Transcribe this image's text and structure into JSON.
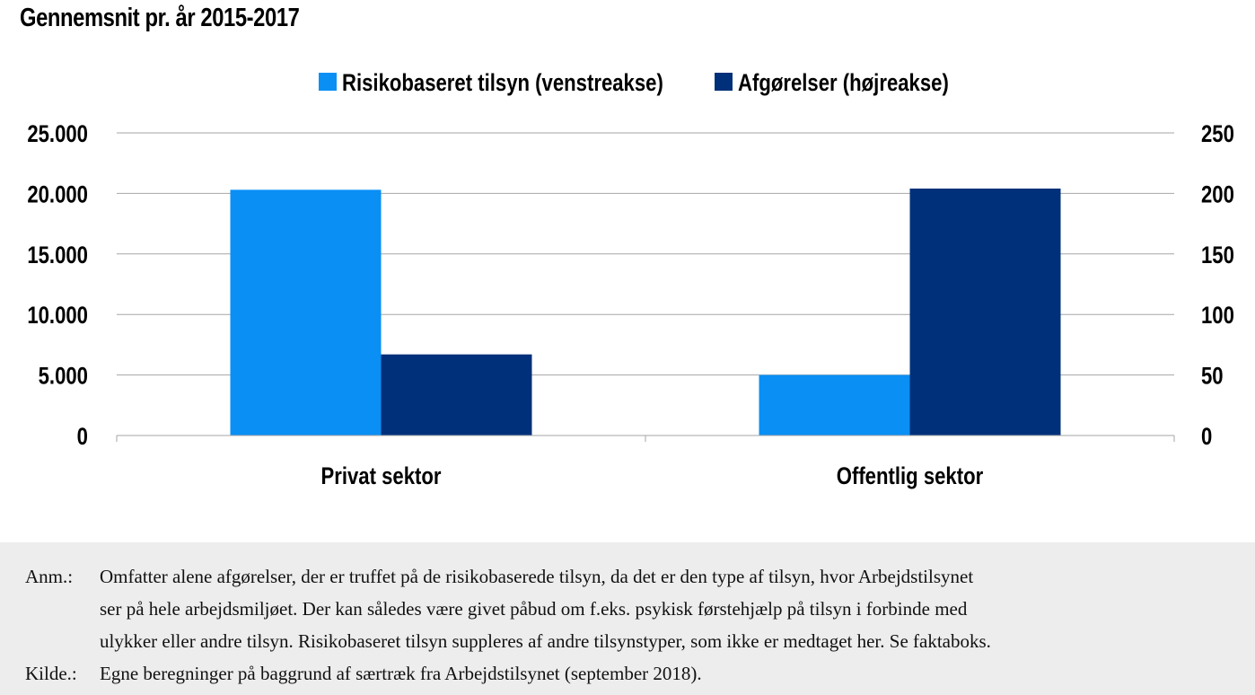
{
  "title": "Gennemsnit pr. år 2015-2017",
  "colors": {
    "series1": "#0a8ff5",
    "series2": "#00307a",
    "grid": "#a6a6a6",
    "note_bg": "#ededed"
  },
  "chart_data": {
    "type": "bar",
    "categories": [
      "Privat sektor",
      "Offentlig sektor"
    ],
    "series": [
      {
        "name": "Risikobaseret tilsyn (venstreakse)",
        "axis": "left",
        "values": [
          20300,
          5000
        ]
      },
      {
        "name": "Afgørelser (højreakse)",
        "axis": "right",
        "values": [
          67,
          204
        ]
      }
    ],
    "left_axis": {
      "ylim": [
        0,
        25000
      ],
      "ticks": [
        0,
        5000,
        10000,
        15000,
        20000,
        25000
      ],
      "tick_labels": [
        "0",
        "5.000",
        "10.000",
        "15.000",
        "20.000",
        "25.000"
      ]
    },
    "right_axis": {
      "ylim": [
        0,
        250
      ],
      "ticks": [
        0,
        50,
        100,
        150,
        200,
        250
      ],
      "tick_labels": [
        "0",
        "50",
        "100",
        "150",
        "200",
        "250"
      ]
    },
    "legend_position": "top-center",
    "grid": true
  },
  "notes": [
    {
      "label": "Anm.:",
      "lines": [
        "Omfatter alene afgørelser, der er truffet på de risikobaserede tilsyn, da det er den type af tilsyn, hvor Arbejdstilsynet",
        "ser på hele arbejdsmiljøet. Der kan således være givet påbud om f.eks. psykisk førstehjælp på tilsyn i forbinde med",
        "ulykker eller andre tilsyn. Risikobaseret tilsyn suppleres af andre tilsynstyper, som ikke er medtaget her. Se faktaboks."
      ]
    },
    {
      "label": "Kilde.:",
      "lines": [
        "Egne beregninger på baggrund af særtræk fra Arbejdstilsynet (september 2018)."
      ]
    }
  ]
}
